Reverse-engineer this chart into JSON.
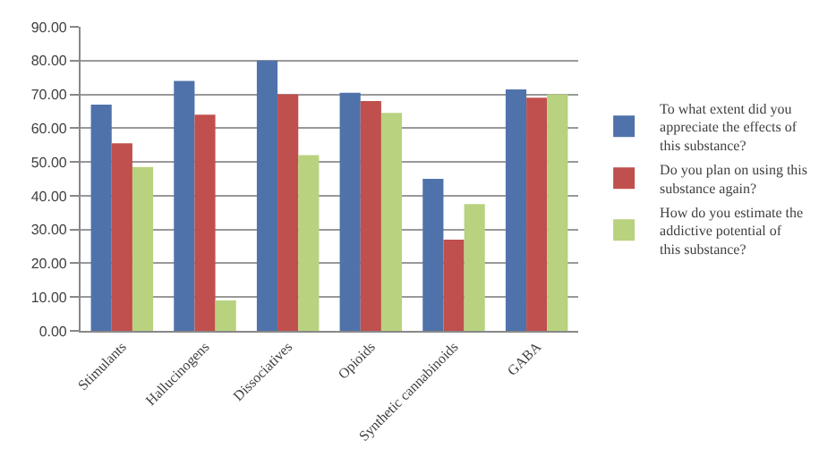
{
  "chart_data": {
    "type": "bar",
    "categories": [
      "Stimulants",
      "Hallucinogens",
      "Dissociatives",
      "Opioids",
      "Synthetic cannabinoids",
      "GABA"
    ],
    "series": [
      {
        "name": "To what extent did you appreciate the effects of this substance?",
        "color": "#4f72aa",
        "values": [
          67,
          74,
          80,
          70.5,
          45,
          71.5
        ]
      },
      {
        "name": "Do you plan on using this substance again?",
        "color": "#c0504d",
        "values": [
          55.5,
          64,
          70,
          68,
          27,
          69
        ]
      },
      {
        "name": "How do you estimate the addictive potential of this substance?",
        "color": "#b9d27f",
        "values": [
          48.5,
          9,
          52,
          64.5,
          37.5,
          70
        ]
      }
    ],
    "ylim": [
      0,
      90
    ],
    "yticks": [
      {
        "value": 0,
        "label": "0.00"
      },
      {
        "value": 10,
        "label": "10.00"
      },
      {
        "value": 20,
        "label": "20.00"
      },
      {
        "value": 30,
        "label": "30.00"
      },
      {
        "value": 40,
        "label": "40.00"
      },
      {
        "value": 50,
        "label": "50.00"
      },
      {
        "value": 60,
        "label": "60.00"
      },
      {
        "value": 70,
        "label": "70.00"
      },
      {
        "value": 80,
        "label": "80.00"
      },
      {
        "value": 90,
        "label": "90.00"
      }
    ],
    "grid": "y",
    "legend": "right"
  }
}
